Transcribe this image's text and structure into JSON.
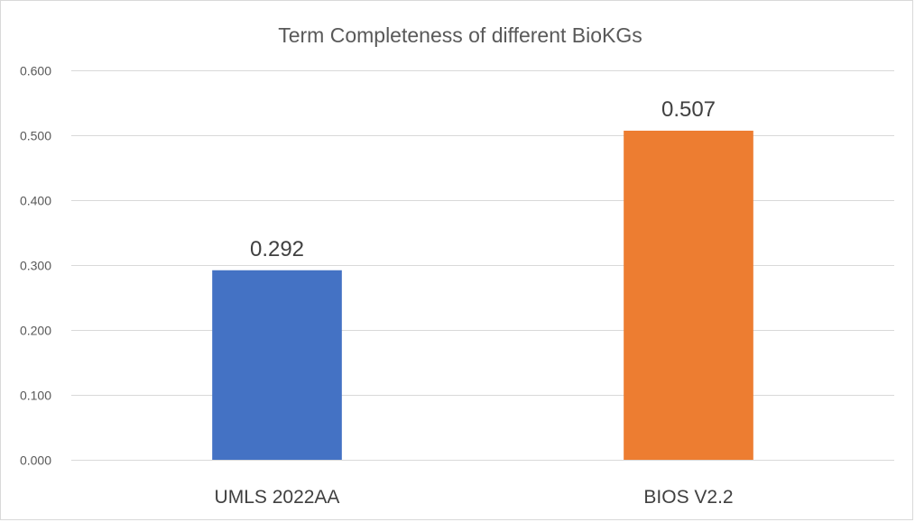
{
  "chart_data": {
    "type": "bar",
    "title": "Term Completeness of different BioKGs",
    "categories": [
      "UMLS 2022AA",
      "BIOS V2.2"
    ],
    "values": [
      0.292,
      0.507
    ],
    "data_labels": [
      "0.292",
      "0.507"
    ],
    "colors": [
      "#4472c4",
      "#ed7d31"
    ],
    "ylim": [
      0,
      0.6
    ],
    "yticks": [
      0.0,
      0.1,
      0.2,
      0.3,
      0.4,
      0.5,
      0.6
    ],
    "ytick_labels": [
      "0.000",
      "0.100",
      "0.200",
      "0.300",
      "0.400",
      "0.500",
      "0.600"
    ],
    "xlabel": "",
    "ylabel": "",
    "grid": true,
    "legend": "none"
  }
}
